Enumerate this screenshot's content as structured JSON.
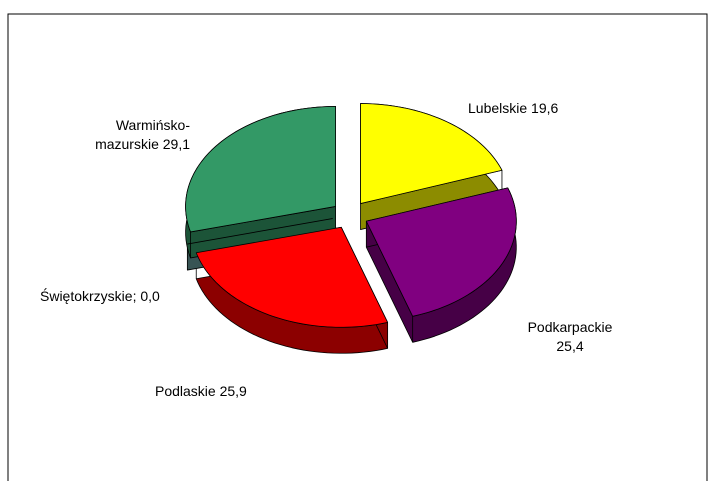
{
  "chart_data": {
    "type": "pie",
    "labels": [
      "Lubelskie 19,6",
      "Podkarpackie 25,4",
      "Podlaskie 25,9",
      "Świętokrzyskie; 0,0",
      "Warmińsko-mazurskie 29,1"
    ],
    "values": [
      19.6,
      25.4,
      25.9,
      0.0,
      29.1
    ],
    "colors": [
      "#ffff00",
      "#800080",
      "#ff0000",
      "#669999",
      "#339966"
    ]
  }
}
